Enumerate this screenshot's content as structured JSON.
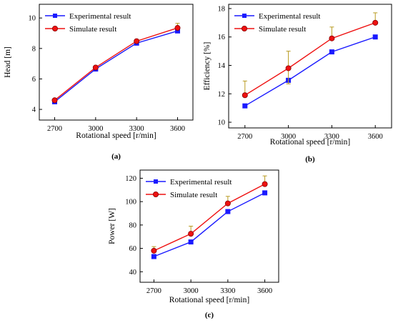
{
  "chart_data": [
    {
      "panel": "(a)",
      "type": "line",
      "categories": [
        "2700",
        "3000",
        "3300",
        "3600"
      ],
      "xlabel": "Rotational speed [r/min]",
      "ylabel": "Head [m]",
      "ylim": [
        3.3,
        10.9
      ],
      "yticks": [
        4,
        6,
        8,
        10
      ],
      "legend": "top-left",
      "series": [
        {
          "name": "Experimental result",
          "color": "#1a1aff",
          "marker": "square",
          "values": [
            4.5,
            6.65,
            8.35,
            9.15
          ]
        },
        {
          "name": "Simulate result",
          "color": "#ee1111",
          "marker": "circle",
          "values": [
            4.6,
            6.75,
            8.48,
            9.35
          ],
          "error_up": [
            0.0,
            0.0,
            0.05,
            0.3
          ]
        }
      ]
    },
    {
      "panel": "(b)",
      "type": "line",
      "categories": [
        "2700",
        "3000",
        "3300",
        "3600"
      ],
      "xlabel": "Rotational speed [r/min]",
      "ylabel": "Efficiency [%]",
      "ylim": [
        9.6,
        18.3
      ],
      "yticks": [
        10,
        12,
        14,
        16,
        18
      ],
      "legend": "top-left",
      "series": [
        {
          "name": "Experimental result",
          "color": "#1a1aff",
          "marker": "square",
          "values": [
            11.15,
            12.95,
            14.95,
            16.0
          ]
        },
        {
          "name": "Simulate result",
          "color": "#ee1111",
          "marker": "circle",
          "values": [
            11.9,
            13.8,
            15.9,
            17.0
          ],
          "error_up": [
            1.0,
            1.2,
            0.8,
            0.7
          ],
          "error_down": [
            0.0,
            1.1,
            0.0,
            0.0
          ]
        }
      ]
    },
    {
      "panel": "(c)",
      "type": "line",
      "categories": [
        "2700",
        "3000",
        "3300",
        "3600"
      ],
      "xlabel": "Rotational speed [r/min]",
      "ylabel": "Power [W]",
      "ylim": [
        31,
        127
      ],
      "yticks": [
        40,
        60,
        80,
        100,
        120
      ],
      "legend": "top-left",
      "series": [
        {
          "name": "Experimental result",
          "color": "#1a1aff",
          "marker": "square",
          "values": [
            53,
            65.5,
            91.5,
            107.5
          ]
        },
        {
          "name": "Simulate result",
          "color": "#ee1111",
          "marker": "circle",
          "values": [
            58,
            72.5,
            98.5,
            115
          ],
          "error_up": [
            3.5,
            6.5,
            6.0,
            7.0
          ]
        }
      ]
    }
  ],
  "errorbar_color": "#b89a20"
}
